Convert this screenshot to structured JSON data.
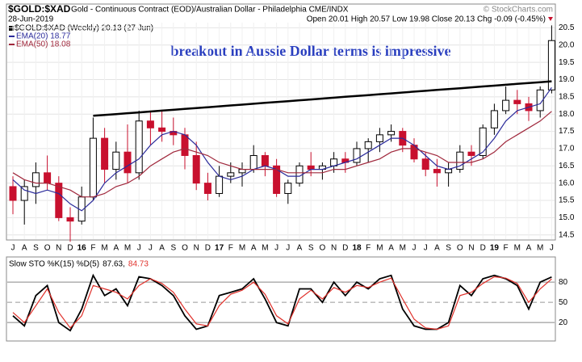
{
  "header": {
    "symbol": "$GOLD:$XAD",
    "description": "Gold - Continuous Contract (EOD)/Australian Dollar - Philadelphia  CME/INDX",
    "date": "28-Jun-2019",
    "quote": "Open 20.01  High 20.57  Low 19.98  Close 20.13  Chg -0.09 (-0.45%)",
    "watermark": "© StockCharts.com"
  },
  "chart_data": [
    {
      "type": "candlestick",
      "legend_main": "$GOLD:$XAD (Weekly) 20.13 (27 Jun)",
      "annotation": "breakout in Aussie Dollar terms is impressive",
      "categories": [
        "J",
        "A",
        "S",
        "O",
        "N",
        "D",
        "16",
        "F",
        "M",
        "A",
        "M",
        "J",
        "J",
        "A",
        "S",
        "O",
        "N",
        "D",
        "17",
        "F",
        "M",
        "A",
        "M",
        "J",
        "J",
        "A",
        "S",
        "O",
        "N",
        "D",
        "18",
        "F",
        "M",
        "A",
        "M",
        "J",
        "J",
        "A",
        "S",
        "O",
        "N",
        "D",
        "19",
        "F",
        "M",
        "A",
        "M",
        "J"
      ],
      "open": [
        15.9,
        15.5,
        15.9,
        16.3,
        16.0,
        15.0,
        14.9,
        15.6,
        17.3,
        16.4,
        16.9,
        16.3,
        17.8,
        17.6,
        17.5,
        17.4,
        16.8,
        16.0,
        15.7,
        16.2,
        16.3,
        16.4,
        16.8,
        16.5,
        15.7,
        16.0,
        16.5,
        16.4,
        16.5,
        16.7,
        16.6,
        17.0,
        17.2,
        17.4,
        17.5,
        17.1,
        16.7,
        16.4,
        16.3,
        16.4,
        16.9,
        16.8,
        17.6,
        18.1,
        18.4,
        18.3,
        18.1,
        18.7
      ],
      "high": [
        16.2,
        16.1,
        16.6,
        16.8,
        16.2,
        15.3,
        15.9,
        17.9,
        17.6,
        17.2,
        17.7,
        18.1,
        18.1,
        18.1,
        17.9,
        17.6,
        17.2,
        16.3,
        16.5,
        16.6,
        16.6,
        17.1,
        16.9,
        16.7,
        16.1,
        16.6,
        16.9,
        16.6,
        16.9,
        16.9,
        17.2,
        17.3,
        17.6,
        17.7,
        17.6,
        17.3,
        16.9,
        16.7,
        16.6,
        17.1,
        17.1,
        17.7,
        18.3,
        18.8,
        18.7,
        18.5,
        18.8,
        20.57
      ],
      "low": [
        15.1,
        14.8,
        15.4,
        15.8,
        14.9,
        14.3,
        14.8,
        15.5,
        16.0,
        16.1,
        16.0,
        16.1,
        17.1,
        17.2,
        17.1,
        16.4,
        15.8,
        15.5,
        15.6,
        16.0,
        15.9,
        16.3,
        16.2,
        15.6,
        15.4,
        15.9,
        16.2,
        16.1,
        16.3,
        16.3,
        16.5,
        16.6,
        16.9,
        17.2,
        16.9,
        16.6,
        16.2,
        15.9,
        15.9,
        16.3,
        16.5,
        16.7,
        17.4,
        18.0,
        18.0,
        17.8,
        17.9,
        18.6
      ],
      "close": [
        15.5,
        15.9,
        16.3,
        16.0,
        15.0,
        14.9,
        15.6,
        17.3,
        16.4,
        16.9,
        16.3,
        17.8,
        17.6,
        17.5,
        17.4,
        16.8,
        16.0,
        15.7,
        16.2,
        16.3,
        16.4,
        16.8,
        16.5,
        15.7,
        16.0,
        16.5,
        16.4,
        16.5,
        16.7,
        16.6,
        17.0,
        17.2,
        17.4,
        17.5,
        17.1,
        16.7,
        16.4,
        16.3,
        16.4,
        16.9,
        16.8,
        17.6,
        18.1,
        18.4,
        18.3,
        18.1,
        18.7,
        20.13
      ],
      "up_color": "#000000",
      "down_color": "#c8102e",
      "series": [
        {
          "name": "EMA(20) 18.77",
          "color": "#2b2b9b",
          "values": [
            16.1,
            15.8,
            15.7,
            15.8,
            15.7,
            15.4,
            15.2,
            15.5,
            16.0,
            16.3,
            16.5,
            16.7,
            17.1,
            17.4,
            17.5,
            17.4,
            17.1,
            16.6,
            16.2,
            16.1,
            16.2,
            16.4,
            16.5,
            16.4,
            16.2,
            16.2,
            16.4,
            16.4,
            16.5,
            16.6,
            16.7,
            16.9,
            17.1,
            17.3,
            17.3,
            17.1,
            16.8,
            16.5,
            16.4,
            16.5,
            16.7,
            16.9,
            17.3,
            17.8,
            18.1,
            18.2,
            18.3,
            18.77
          ]
        },
        {
          "name": "EMA(50) 18.08",
          "color": "#a0283c",
          "values": [
            16.3,
            16.1,
            16.0,
            16.0,
            15.9,
            15.8,
            15.6,
            15.6,
            15.7,
            15.9,
            16.0,
            16.2,
            16.5,
            16.7,
            16.9,
            17.0,
            16.9,
            16.8,
            16.6,
            16.5,
            16.4,
            16.4,
            16.4,
            16.4,
            16.3,
            16.3,
            16.3,
            16.3,
            16.4,
            16.4,
            16.5,
            16.6,
            16.7,
            16.9,
            17.0,
            17.0,
            16.9,
            16.8,
            16.6,
            16.6,
            16.6,
            16.7,
            16.9,
            17.2,
            17.4,
            17.6,
            17.8,
            18.08
          ]
        }
      ],
      "trendline": {
        "color": "#000000",
        "values": [
          null,
          null,
          null,
          null,
          null,
          null,
          null,
          17.95,
          17.975,
          18.0,
          18.025,
          18.05,
          18.075,
          18.1,
          18.125,
          18.15,
          18.175,
          18.2,
          18.225,
          18.25,
          18.275,
          18.3,
          18.325,
          18.35,
          18.375,
          18.4,
          18.425,
          18.45,
          18.475,
          18.5,
          18.525,
          18.55,
          18.575,
          18.6,
          18.625,
          18.65,
          18.675,
          18.7,
          18.725,
          18.75,
          18.775,
          18.8,
          18.825,
          18.85,
          18.875,
          18.9,
          18.925,
          18.95
        ]
      },
      "ylim": [
        14.4,
        20.65
      ],
      "yticks": [
        14.5,
        {
          "value": 15,
          "label": "15.0"
        },
        15.5,
        {
          "value": 16,
          "label": "16.0"
        },
        16.5,
        {
          "value": 17,
          "label": "17.0"
        },
        17.5,
        {
          "value": 18,
          "label": "18.0"
        },
        18.5,
        {
          "value": 19,
          "label": "19.0"
        },
        19.5,
        {
          "value": 20,
          "label": "20.0"
        },
        20.5
      ],
      "grid": true
    },
    {
      "type": "line",
      "title": "Slow STO %K(15) %D(5)",
      "separator": ",",
      "series": [
        {
          "name": "%K(15)",
          "color": "#000000",
          "values": [
            30,
            15,
            60,
            75,
            20,
            8,
            40,
            90,
            60,
            70,
            45,
            88,
            85,
            75,
            60,
            30,
            10,
            15,
            60,
            65,
            70,
            85,
            55,
            20,
            15,
            70,
            70,
            50,
            80,
            60,
            80,
            70,
            85,
            90,
            40,
            15,
            10,
            10,
            20,
            75,
            60,
            85,
            90,
            85,
            75,
            40,
            80,
            87.63
          ]
        },
        {
          "name": "%D(5)",
          "color": "#e0302a",
          "values": [
            35,
            20,
            45,
            70,
            35,
            12,
            30,
            75,
            70,
            65,
            55,
            75,
            85,
            78,
            65,
            40,
            18,
            15,
            45,
            62,
            68,
            80,
            62,
            30,
            18,
            55,
            68,
            55,
            72,
            65,
            75,
            72,
            80,
            86,
            55,
            25,
            12,
            10,
            15,
            60,
            65,
            78,
            88,
            86,
            78,
            50,
            70,
            84.73
          ]
        }
      ],
      "ylim": [
        -5,
        115
      ],
      "yticks": [
        20,
        50,
        80
      ],
      "grid": true
    }
  ]
}
